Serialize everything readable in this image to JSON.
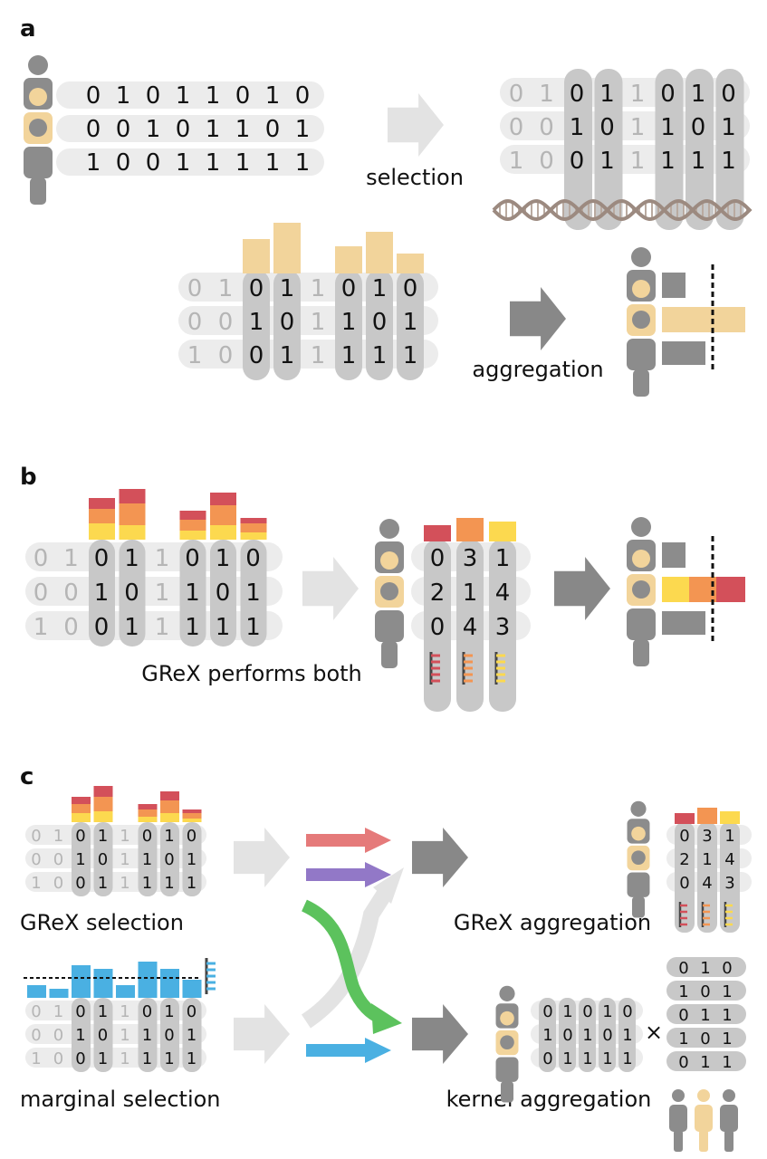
{
  "panels": {
    "a": {
      "label": "a",
      "genotypes": [
        [
          "0",
          "1",
          "0",
          "1",
          "1",
          "0",
          "1",
          "0"
        ],
        [
          "0",
          "0",
          "1",
          "0",
          "1",
          "1",
          "0",
          "1"
        ],
        [
          "1",
          "0",
          "0",
          "1",
          "1",
          "1",
          "1",
          "1"
        ]
      ],
      "selection_caption": "selection",
      "aggregation_caption": "aggregation"
    },
    "b": {
      "label": "b",
      "caption": "GReX performs both",
      "aggregated": [
        [
          "0",
          "3",
          "1"
        ],
        [
          "2",
          "1",
          "4"
        ],
        [
          "0",
          "4",
          "3"
        ]
      ]
    },
    "c": {
      "label": "c",
      "grex_selection": "GReX selection",
      "marginal_selection": "marginal selection",
      "grex_aggregation": "GReX aggregation",
      "kernel_aggregation": "kernel aggregation",
      "grex_small": [
        [
          "0",
          "3",
          "1"
        ],
        [
          "2",
          "1",
          "4"
        ],
        [
          "0",
          "4",
          "3"
        ]
      ],
      "kernel_rows": [
        [
          "0",
          "1",
          "0",
          "1",
          "0"
        ],
        [
          "1",
          "0",
          "1",
          "0",
          "1"
        ],
        [
          "0",
          "1",
          "1",
          "1",
          "1"
        ]
      ],
      "kernel_matrix": [
        [
          "0",
          "1",
          "0"
        ],
        [
          "1",
          "0",
          "1"
        ],
        [
          "0",
          "1",
          "1"
        ],
        [
          "1",
          "0",
          "1"
        ],
        [
          "0",
          "1",
          "1"
        ]
      ],
      "times_symbol": "×"
    }
  },
  "colors": {
    "tan": "#f2d49b",
    "person": "#8c8c8c",
    "column": "#c8c8c8",
    "rowbg": "#ececec",
    "faded": "#b5b5b5",
    "red": "#d3505a",
    "orange": "#f39552",
    "yellow": "#fcd94f",
    "blue": "#4ab0e2",
    "purple": "#9278c7",
    "green": "#5cc25d",
    "lightarrow": "#e3e3e3",
    "darkarrow": "#888888"
  }
}
